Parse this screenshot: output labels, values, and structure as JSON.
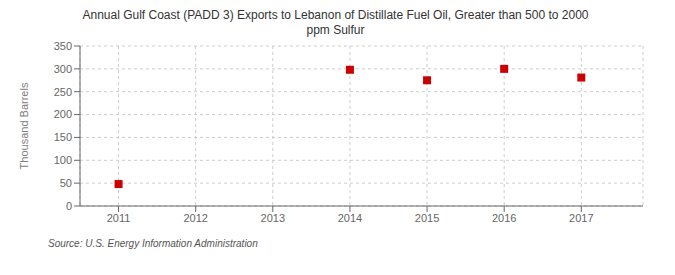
{
  "chart_data": {
    "type": "scatter",
    "title": "Annual Gulf Coast (PADD 3) Exports to Lebanon of Distillate Fuel Oil, Greater than 500 to 2000\nppm Sulfur",
    "ylabel": "Thousand Barrels",
    "annotation": "Source: U.S. Energy Information Administration",
    "x": [
      2011,
      2014,
      2015,
      2016,
      2017
    ],
    "values": [
      48,
      298,
      275,
      300,
      281
    ],
    "xlim": [
      2010.5,
      2017.8
    ],
    "ylim": [
      0,
      350
    ],
    "xticks": [
      2011,
      2012,
      2013,
      2014,
      2015,
      2016,
      2017
    ],
    "yticks": [
      0,
      50,
      100,
      150,
      200,
      250,
      300,
      350
    ],
    "color": "#cc0000",
    "marker": "square",
    "grid": true
  }
}
